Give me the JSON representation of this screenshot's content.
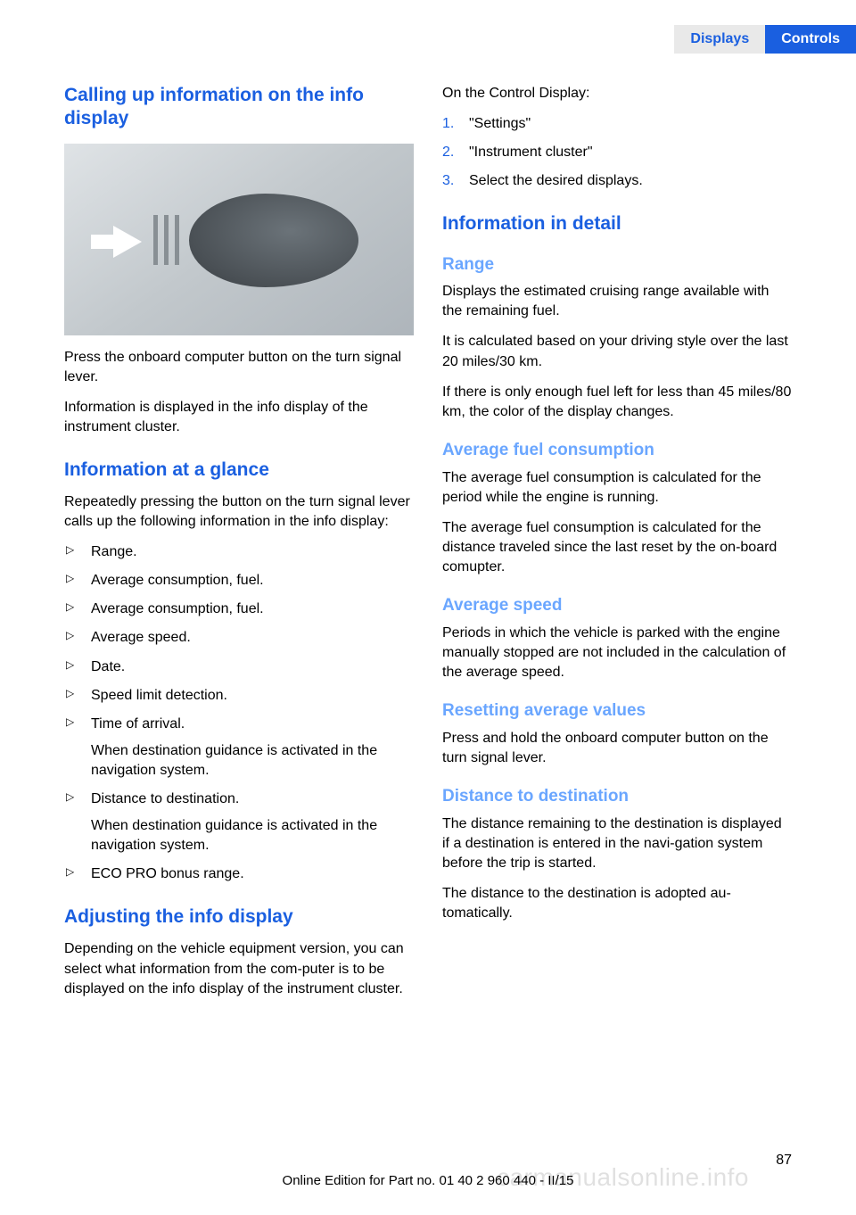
{
  "header": {
    "tab_grey": "Displays",
    "tab_blue": "Controls"
  },
  "left": {
    "h1": "Calling up information on the info display",
    "p1": "Press the onboard computer button on the turn signal lever.",
    "p2": "Information is displayed in the info display of the instrument cluster.",
    "h2": "Information at a glance",
    "p3": "Repeatedly pressing the button on the turn signal lever calls up the following information in the info display:",
    "list": {
      "i0": "Range.",
      "i1": "Average consumption, fuel.",
      "i2": "Average consumption, fuel.",
      "i3": "Average speed.",
      "i4": "Date.",
      "i5": "Speed limit detection.",
      "i6": "Time of arrival.",
      "i6sub": "When destination guidance is activated in the navigation system.",
      "i7": "Distance to destination.",
      "i7sub": "When destination guidance is activated in the navigation system.",
      "i8": "ECO PRO bonus range."
    },
    "h3": "Adjusting the info display",
    "p4": "Depending on the vehicle equipment version, you can select what information from the com‐puter is to be displayed on the info display of the instrument cluster."
  },
  "right": {
    "p1": "On the Control Display:",
    "ol": {
      "n1": "1.",
      "t1": "\"Settings\"",
      "n2": "2.",
      "t2": "\"Instrument cluster\"",
      "n3": "3.",
      "t3": "Select the desired displays."
    },
    "h1": "Information in detail",
    "h2a": "Range",
    "p2": "Displays the estimated cruising range available with the remaining fuel.",
    "p3": "It is calculated based on your driving style over the last 20 miles/30 km.",
    "p4": "If there is only enough fuel left for less than 45 miles/80 km, the color of the display changes.",
    "h2b": "Average fuel consumption",
    "p5": "The average fuel consumption is calculated for the period while the engine is running.",
    "p6": "The average fuel consumption is calculated for the distance traveled since the last reset by the on-board comupter.",
    "h2c": "Average speed",
    "p7": "Periods in which the vehicle is parked with the engine manually stopped are not included in the calculation of the average speed.",
    "h2d": "Resetting average values",
    "p8": "Press and hold the onboard computer button on the turn signal lever.",
    "h2e": "Distance to destination",
    "p9": "The distance remaining to the destination is displayed if a destination is entered in the navi‐gation system before the trip is started.",
    "p10": "The distance to the destination is adopted au‐tomatically."
  },
  "footer": {
    "page": "87",
    "watermark": "carmanualsonline.info",
    "edition": "Online Edition for Part no. 01 40 2 960 440 - II/15"
  }
}
